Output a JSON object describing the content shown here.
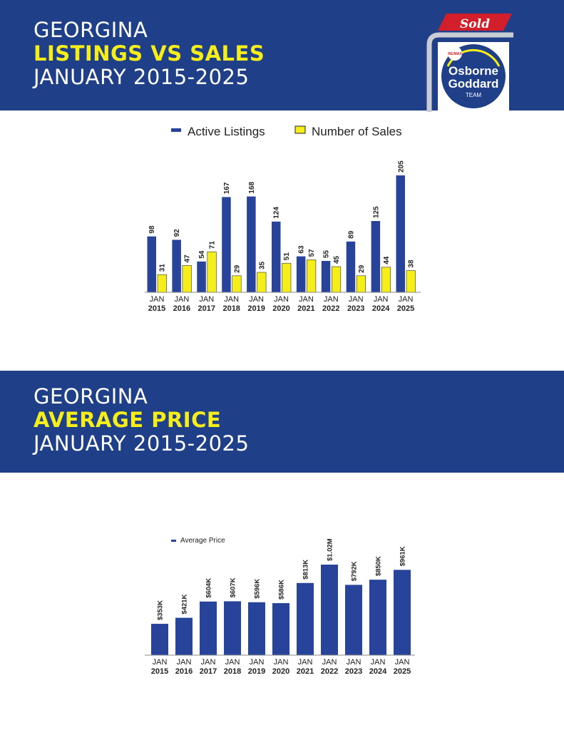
{
  "section1": {
    "title_line1": "GEORGINA",
    "title_line2": "LISTINGS VS SALES",
    "title_line3": "JANUARY 2015-2025"
  },
  "section2": {
    "title_line1": "GEORGINA",
    "title_line2": "AVERAGE PRICE",
    "title_line3": "JANUARY 2015-2025"
  },
  "logo": {
    "sold_text": "Sold",
    "brand_small": "RE/MAX",
    "line1": "Osborne",
    "line2": "Goddard",
    "line3": "TEAM"
  },
  "colors": {
    "header_bg": "#1f3f88",
    "highlight": "#f6ee1a",
    "bar_blue": "#27449a",
    "bar_yellow": "#f6ee1a",
    "sold_red": "#d21f2b"
  },
  "chart_data": [
    {
      "type": "bar",
      "categories": [
        [
          "JAN",
          "2015"
        ],
        [
          "JAN",
          "2016"
        ],
        [
          "JAN",
          "2017"
        ],
        [
          "JAN",
          "2018"
        ],
        [
          "JAN",
          "2019"
        ],
        [
          "JAN",
          "2020"
        ],
        [
          "JAN",
          "2021"
        ],
        [
          "JAN",
          "2022"
        ],
        [
          "JAN",
          "2023"
        ],
        [
          "JAN",
          "2024"
        ],
        [
          "JAN",
          "2025"
        ]
      ],
      "series": [
        {
          "name": "Active Listings",
          "values": [
            98,
            92,
            54,
            167,
            168,
            124,
            63,
            55,
            89,
            125,
            205
          ],
          "labels": [
            "98",
            "92",
            "54",
            "167",
            "168",
            "124",
            "63",
            "55",
            "89",
            "125",
            "205"
          ]
        },
        {
          "name": "Number of Sales",
          "values": [
            31,
            47,
            71,
            29,
            35,
            51,
            57,
            45,
            29,
            44,
            38
          ],
          "labels": [
            "31",
            "47",
            "71",
            "29",
            "35",
            "51",
            "57",
            "45",
            "29",
            "44",
            "38"
          ]
        }
      ],
      "ylim": [
        0,
        205
      ],
      "legend": "top-center"
    },
    {
      "type": "bar",
      "categories": [
        [
          "JAN",
          "2015"
        ],
        [
          "JAN",
          "2016"
        ],
        [
          "JAN",
          "2017"
        ],
        [
          "JAN",
          "2018"
        ],
        [
          "JAN",
          "2019"
        ],
        [
          "JAN",
          "2020"
        ],
        [
          "JAN",
          "2021"
        ],
        [
          "JAN",
          "2022"
        ],
        [
          "JAN",
          "2023"
        ],
        [
          "JAN",
          "2024"
        ],
        [
          "JAN",
          "2025"
        ]
      ],
      "series": [
        {
          "name": "Average Price",
          "values": [
            353000,
            421000,
            604000,
            607000,
            596000,
            586000,
            813000,
            1020000,
            792000,
            850000,
            961000
          ],
          "labels": [
            "$353K",
            "$421K",
            "$604K",
            "$607K",
            "$596K",
            "$586K",
            "$813K",
            "$1.02M",
            "$792K",
            "$850K",
            "$961K"
          ]
        }
      ],
      "ylim": [
        0,
        1020000
      ],
      "legend": "top-left"
    }
  ]
}
